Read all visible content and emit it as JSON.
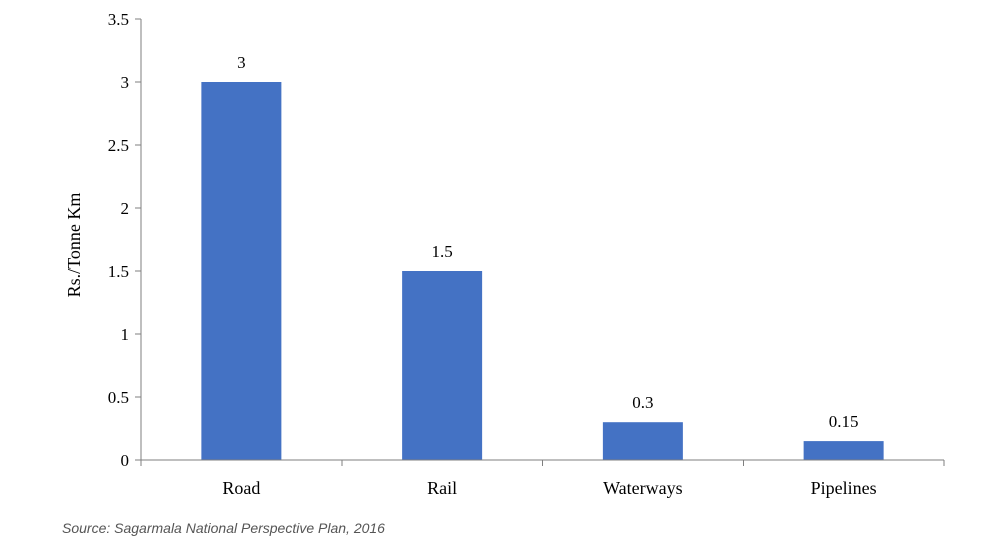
{
  "chart_data": {
    "type": "bar",
    "categories": [
      "Road",
      "Rail",
      "Waterways",
      "Pipelines"
    ],
    "values": [
      3,
      1.5,
      0.3,
      0.15
    ],
    "data_labels": [
      "3",
      "1.5",
      "0.3",
      "0.15"
    ],
    "title": "",
    "xlabel": "",
    "ylabel": "Rs./Tonne Km",
    "ylim": [
      0,
      3.5
    ],
    "yticks": [
      0,
      0.5,
      1,
      1.5,
      2,
      2.5,
      3,
      3.5
    ],
    "ytick_labels": [
      "0",
      "0.5",
      "1",
      "1.5",
      "2",
      "2.5",
      "3",
      "3.5"
    ],
    "grid": false,
    "legend": "none",
    "bar_color": "#4472C4"
  },
  "source_note": "Source: Sagarmala National Perspective Plan, 2016"
}
